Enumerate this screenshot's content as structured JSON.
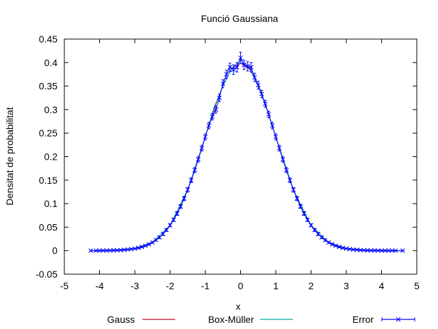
{
  "chart_data": {
    "type": "line",
    "title": "Funció Gaussiana",
    "xlabel": "x",
    "ylabel": "Densitat de probabilitat",
    "xlim": [
      -5,
      5
    ],
    "ylim": [
      -0.05,
      0.45
    ],
    "xticks": [
      "-5",
      "-4",
      "-3",
      "-2",
      "-1",
      "0",
      "1",
      "2",
      "3",
      "4",
      "5"
    ],
    "yticks": [
      "-0.05",
      "0",
      "0.05",
      "0.1",
      "0.15",
      "0.2",
      "0.25",
      "0.3",
      "0.35",
      "0.4",
      "0.45"
    ],
    "grid": false,
    "legend_position": "bottom",
    "series": [
      {
        "name": "Gauss",
        "color": "#c8002a",
        "style": "line",
        "x": [
          -4.25,
          -4.0,
          -3.5,
          -3.0,
          -2.75,
          -2.5,
          -2.25,
          -2.0,
          -1.75,
          -1.5,
          -1.25,
          -1.0,
          -0.75,
          -0.5,
          -0.25,
          0.0,
          0.25,
          0.5,
          0.75,
          1.0,
          1.25,
          1.5,
          1.75,
          2.0,
          2.25,
          2.5,
          2.75,
          3.0,
          3.5,
          4.0,
          4.6
        ],
        "y": [
          0.0,
          0.0001,
          0.0009,
          0.0044,
          0.0091,
          0.0175,
          0.0317,
          0.054,
          0.0863,
          0.1295,
          0.1826,
          0.242,
          0.3011,
          0.3521,
          0.3867,
          0.3989,
          0.3867,
          0.3521,
          0.3011,
          0.242,
          0.1826,
          0.1295,
          0.0863,
          0.054,
          0.0317,
          0.0175,
          0.0091,
          0.0044,
          0.0009,
          0.0001,
          0.0
        ]
      },
      {
        "name": "Box-Müller",
        "color": "#00aaaa",
        "style": "line",
        "x": [
          -4.25,
          -4.0,
          -3.5,
          -3.0,
          -2.5,
          -2.0,
          -1.5,
          -1.0,
          -0.75,
          -0.5,
          -0.25,
          0.0,
          0.25,
          0.5,
          0.75,
          1.0,
          1.5,
          2.0,
          2.5,
          3.0,
          3.5,
          4.0,
          4.6
        ],
        "y": [
          0.0,
          0.0001,
          0.001,
          0.0045,
          0.0178,
          0.054,
          0.13,
          0.242,
          0.305,
          0.35,
          0.388,
          0.405,
          0.39,
          0.35,
          0.3,
          0.242,
          0.1295,
          0.054,
          0.0175,
          0.0044,
          0.0009,
          0.0001,
          0.0
        ]
      },
      {
        "name": "Error",
        "color": "#0000ff",
        "style": "points-errorbars",
        "x": [
          -4.25,
          -4.1,
          -4.0,
          -3.9,
          -3.8,
          -3.7,
          -3.6,
          -3.5,
          -3.4,
          -3.3,
          -3.2,
          -3.1,
          -3.0,
          -2.9,
          -2.8,
          -2.7,
          -2.6,
          -2.5,
          -2.4,
          -2.3,
          -2.2,
          -2.1,
          -2.0,
          -1.9,
          -1.8,
          -1.7,
          -1.6,
          -1.5,
          -1.4,
          -1.3,
          -1.2,
          -1.1,
          -1.0,
          -0.9,
          -0.8,
          -0.7,
          -0.6,
          -0.5,
          -0.4,
          -0.3,
          -0.2,
          -0.1,
          0.0,
          0.1,
          0.2,
          0.3,
          0.4,
          0.5,
          0.6,
          0.7,
          0.8,
          0.9,
          1.0,
          1.1,
          1.2,
          1.3,
          1.4,
          1.5,
          1.6,
          1.7,
          1.8,
          1.9,
          2.0,
          2.1,
          2.2,
          2.3,
          2.4,
          2.5,
          2.6,
          2.7,
          2.8,
          2.9,
          3.0,
          3.1,
          3.2,
          3.3,
          3.4,
          3.5,
          3.6,
          3.7,
          3.8,
          3.9,
          4.0,
          4.1,
          4.2,
          4.3,
          4.4,
          4.6
        ],
        "y": [
          0.0,
          0.0,
          0.0001,
          0.0002,
          0.0003,
          0.0004,
          0.0006,
          0.0009,
          0.0012,
          0.0017,
          0.0024,
          0.0033,
          0.0044,
          0.006,
          0.0079,
          0.0104,
          0.0136,
          0.0175,
          0.0224,
          0.0283,
          0.0355,
          0.044,
          0.054,
          0.0656,
          0.079,
          0.094,
          0.1109,
          0.1295,
          0.1497,
          0.1714,
          0.1942,
          0.2179,
          0.242,
          0.2661,
          0.285,
          0.3,
          0.325,
          0.355,
          0.375,
          0.39,
          0.385,
          0.39,
          0.41,
          0.395,
          0.392,
          0.39,
          0.3683,
          0.3521,
          0.3332,
          0.3123,
          0.2897,
          0.2661,
          0.242,
          0.2179,
          0.1942,
          0.1714,
          0.1497,
          0.1295,
          0.1109,
          0.094,
          0.079,
          0.0656,
          0.054,
          0.044,
          0.0355,
          0.0283,
          0.0224,
          0.0175,
          0.0136,
          0.0104,
          0.0079,
          0.006,
          0.0044,
          0.0033,
          0.0024,
          0.0017,
          0.0012,
          0.0009,
          0.0006,
          0.0004,
          0.0003,
          0.0002,
          0.0001,
          0.0001,
          0.0,
          0.0,
          0.0,
          0.0
        ],
        "err": [
          0.001,
          0.001,
          0.001,
          0.001,
          0.001,
          0.001,
          0.001,
          0.001,
          0.001,
          0.001,
          0.001,
          0.001,
          0.001,
          0.0015,
          0.0015,
          0.0015,
          0.002,
          0.002,
          0.002,
          0.0025,
          0.003,
          0.003,
          0.003,
          0.0035,
          0.004,
          0.004,
          0.0045,
          0.005,
          0.005,
          0.0055,
          0.006,
          0.006,
          0.0065,
          0.007,
          0.007,
          0.0075,
          0.008,
          0.0085,
          0.009,
          0.009,
          0.01,
          0.01,
          0.012,
          0.01,
          0.01,
          0.01,
          0.009,
          0.0085,
          0.008,
          0.0075,
          0.007,
          0.007,
          0.0065,
          0.006,
          0.006,
          0.0055,
          0.005,
          0.005,
          0.0045,
          0.004,
          0.004,
          0.0035,
          0.003,
          0.003,
          0.003,
          0.0025,
          0.002,
          0.002,
          0.002,
          0.0015,
          0.0015,
          0.0015,
          0.001,
          0.001,
          0.001,
          0.001,
          0.001,
          0.001,
          0.001,
          0.001,
          0.001,
          0.001,
          0.001,
          0.001,
          0.001,
          0.001,
          0.001,
          0.001
        ]
      }
    ]
  }
}
